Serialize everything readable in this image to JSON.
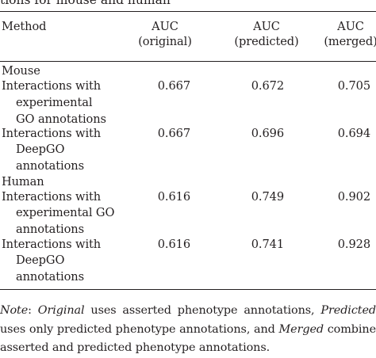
{
  "caption_fragment": "tions for mouse and human",
  "header": {
    "method": "Method",
    "original": [
      "AUC",
      "(original)"
    ],
    "predicted": [
      "AUC",
      "(predicted)"
    ],
    "merged": [
      "AUC",
      "(merged)"
    ]
  },
  "sections": [
    {
      "name": "Mouse",
      "rows": [
        {
          "label": [
            "Interactions with",
            "experimental",
            "GO annotations"
          ],
          "original": "0.667",
          "predicted": "0.672",
          "merged": "0.705"
        },
        {
          "label": [
            "Interactions with",
            "DeepGO",
            "annotations"
          ],
          "original": "0.667",
          "predicted": "0.696",
          "merged": "0.694"
        }
      ]
    },
    {
      "name": "Human",
      "rows": [
        {
          "label": [
            "Interactions with",
            "experimental GO",
            "annotations"
          ],
          "original": "0.616",
          "predicted": "0.749",
          "merged": "0.902"
        },
        {
          "label": [
            "Interactions with",
            "DeepGO",
            "annotations"
          ],
          "original": "0.616",
          "predicted": "0.741",
          "merged": "0.928"
        }
      ]
    }
  ],
  "note": {
    "label": "Note",
    "colon": ": ",
    "term1": "Original",
    "text1": " uses asserted phenotype annotations, ",
    "term2": "Predicted",
    "text2": " uses only predicted phenotype annotations, and ",
    "term3": "Merged",
    "text3": " combine asserted and predicted phenotype annotations."
  }
}
